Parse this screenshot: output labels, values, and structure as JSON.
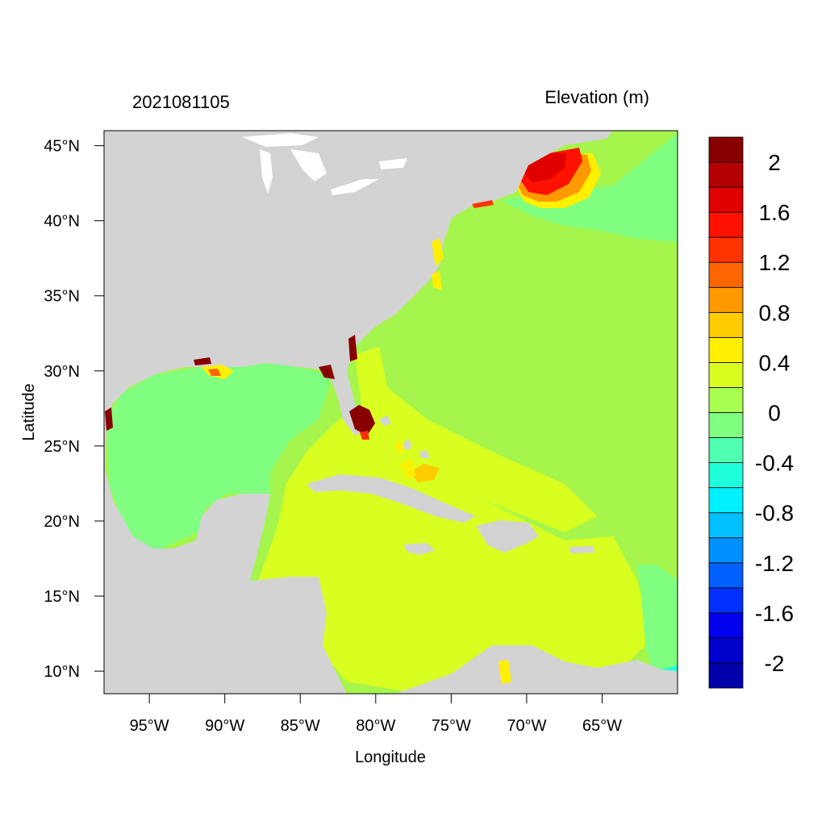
{
  "title_left": "2021081105",
  "title_right": "Elevation (m)",
  "x_axis": {
    "label": "Longitude",
    "range": [
      -98,
      -60
    ],
    "ticks": [
      {
        "value": -95,
        "label": "95°W"
      },
      {
        "value": -90,
        "label": "90°W"
      },
      {
        "value": -85,
        "label": "85°W"
      },
      {
        "value": -80,
        "label": "80°W"
      },
      {
        "value": -75,
        "label": "75°W"
      },
      {
        "value": -70,
        "label": "70°W"
      },
      {
        "value": -65,
        "label": "65°W"
      }
    ]
  },
  "y_axis": {
    "label": "Latitude",
    "range": [
      8.5,
      46
    ],
    "ticks": [
      {
        "value": 45,
        "label": "45°N"
      },
      {
        "value": 40,
        "label": "40°N"
      },
      {
        "value": 35,
        "label": "35°N"
      },
      {
        "value": 30,
        "label": "30°N"
      },
      {
        "value": 25,
        "label": "25°N"
      },
      {
        "value": 20,
        "label": "20°N"
      },
      {
        "value": 15,
        "label": "15°N"
      },
      {
        "value": 10,
        "label": "10°N"
      }
    ]
  },
  "colorbar": {
    "min": -2.2,
    "max": 2.2,
    "colors": [
      "#0000AA",
      "#0000CC",
      "#0000EE",
      "#0030FF",
      "#0060FF",
      "#0090FF",
      "#00C0FF",
      "#00F0FF",
      "#20FFDC",
      "#50FFB0",
      "#80FF80",
      "#A8FF50",
      "#D8FF20",
      "#FFF000",
      "#FFCC00",
      "#FF9900",
      "#FF6600",
      "#FF3300",
      "#FF1100",
      "#E00000",
      "#B40000",
      "#880000"
    ],
    "labels": [
      {
        "value": 2,
        "label": "2"
      },
      {
        "value": 1.6,
        "label": "1.6"
      },
      {
        "value": 1.2,
        "label": "1.2"
      },
      {
        "value": 0.8,
        "label": "0.8"
      },
      {
        "value": 0.4,
        "label": "0.4"
      },
      {
        "value": 0,
        "label": "0"
      },
      {
        "value": -0.4,
        "label": "-0.4"
      },
      {
        "value": -0.8,
        "label": "-0.8"
      },
      {
        "value": -1.2,
        "label": "-1.2"
      },
      {
        "value": -1.6,
        "label": "-1.6"
      },
      {
        "value": -2,
        "label": "-2"
      }
    ]
  },
  "colors": {
    "land": "#d3d3d3",
    "frame": "#000000"
  }
}
